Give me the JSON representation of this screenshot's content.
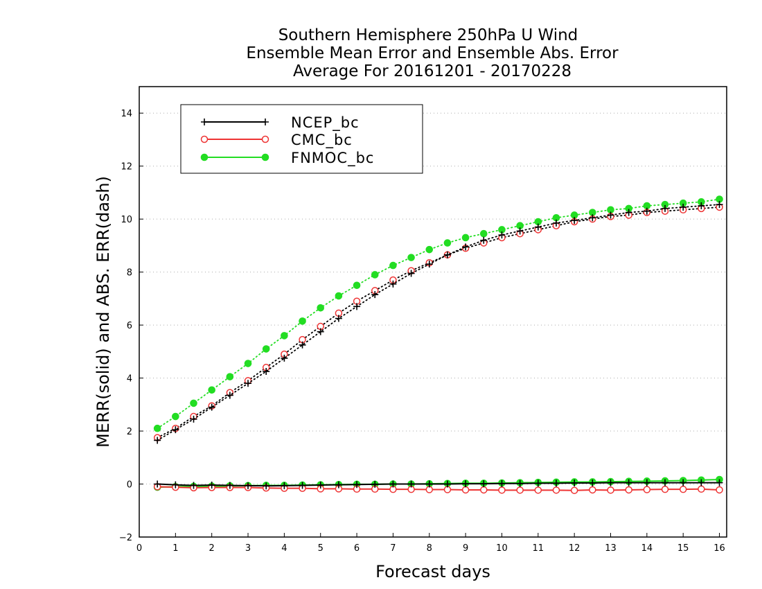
{
  "chart_data": {
    "type": "line",
    "title": "Southern Hemisphere 250hPa U Wind",
    "subtitle_lines": [
      "Ensemble Mean Error and Ensemble Abs. Error",
      "Average For 20161201 - 20170228"
    ],
    "xlabel": "Forecast days",
    "ylabel": "MERR(solid) and ABS. ERR(dash)",
    "xlim": [
      0,
      16.2
    ],
    "ylim": [
      -2,
      15
    ],
    "xticks": [
      0,
      1,
      2,
      3,
      4,
      5,
      6,
      7,
      8,
      9,
      10,
      11,
      12,
      13,
      14,
      15,
      16
    ],
    "yticks": [
      -2,
      0,
      2,
      4,
      6,
      8,
      10,
      12,
      14
    ],
    "x": [
      0.5,
      1.0,
      1.5,
      2.0,
      2.5,
      3.0,
      3.5,
      4.0,
      4.5,
      5.0,
      5.5,
      6.0,
      6.5,
      7.0,
      7.5,
      8.0,
      8.5,
      9.0,
      9.5,
      10.0,
      10.5,
      11.0,
      11.5,
      12.0,
      12.5,
      13.0,
      13.5,
      14.0,
      14.5,
      15.0,
      15.5,
      16.0
    ],
    "grid": "horizontal dotted",
    "legend_position": "top-left",
    "series": [
      {
        "name": "NCEP_bc",
        "color": "#000000",
        "marker": "plus",
        "merr": [
          0.0,
          -0.03,
          -0.05,
          -0.04,
          -0.05,
          -0.06,
          -0.07,
          -0.06,
          -0.05,
          -0.04,
          -0.03,
          -0.02,
          -0.01,
          0.0,
          0.0,
          0.0,
          0.0,
          0.01,
          0.01,
          0.02,
          0.02,
          0.03,
          0.03,
          0.04,
          0.04,
          0.05,
          0.05,
          0.05,
          0.05,
          0.05,
          0.05,
          0.05
        ],
        "abs_err": [
          1.65,
          2.05,
          2.45,
          2.9,
          3.35,
          3.8,
          4.25,
          4.75,
          5.25,
          5.75,
          6.25,
          6.7,
          7.15,
          7.55,
          7.95,
          8.3,
          8.65,
          8.95,
          9.2,
          9.4,
          9.55,
          9.7,
          9.85,
          9.95,
          10.05,
          10.15,
          10.25,
          10.3,
          10.4,
          10.45,
          10.5,
          10.55
        ]
      },
      {
        "name": "CMC_bc",
        "color": "#ee3333",
        "marker": "open-circle",
        "merr": [
          -0.1,
          -0.12,
          -0.14,
          -0.13,
          -0.13,
          -0.13,
          -0.15,
          -0.16,
          -0.16,
          -0.18,
          -0.18,
          -0.19,
          -0.19,
          -0.2,
          -0.2,
          -0.21,
          -0.21,
          -0.22,
          -0.22,
          -0.23,
          -0.23,
          -0.23,
          -0.23,
          -0.24,
          -0.22,
          -0.23,
          -0.22,
          -0.21,
          -0.2,
          -0.2,
          -0.19,
          -0.22
        ],
        "abs_err": [
          1.75,
          2.1,
          2.55,
          2.95,
          3.45,
          3.9,
          4.4,
          4.9,
          5.45,
          5.95,
          6.45,
          6.9,
          7.3,
          7.7,
          8.05,
          8.35,
          8.65,
          8.9,
          9.1,
          9.3,
          9.45,
          9.6,
          9.75,
          9.9,
          10.0,
          10.1,
          10.15,
          10.25,
          10.3,
          10.35,
          10.4,
          10.45
        ]
      },
      {
        "name": "FNMOC_bc",
        "color": "#22dd22",
        "marker": "filled-circle",
        "merr": [
          -0.12,
          -0.1,
          -0.09,
          -0.08,
          -0.07,
          -0.06,
          -0.05,
          -0.05,
          -0.04,
          -0.03,
          -0.02,
          -0.01,
          -0.01,
          0.0,
          0.0,
          0.01,
          0.02,
          0.03,
          0.03,
          0.04,
          0.05,
          0.06,
          0.07,
          0.08,
          0.08,
          0.09,
          0.1,
          0.11,
          0.12,
          0.13,
          0.15,
          0.17
        ],
        "abs_err": [
          2.1,
          2.55,
          3.05,
          3.55,
          4.05,
          4.55,
          5.1,
          5.6,
          6.15,
          6.65,
          7.1,
          7.5,
          7.9,
          8.25,
          8.55,
          8.85,
          9.1,
          9.3,
          9.45,
          9.6,
          9.75,
          9.9,
          10.05,
          10.15,
          10.25,
          10.35,
          10.4,
          10.5,
          10.55,
          10.6,
          10.65,
          10.75
        ]
      }
    ]
  }
}
